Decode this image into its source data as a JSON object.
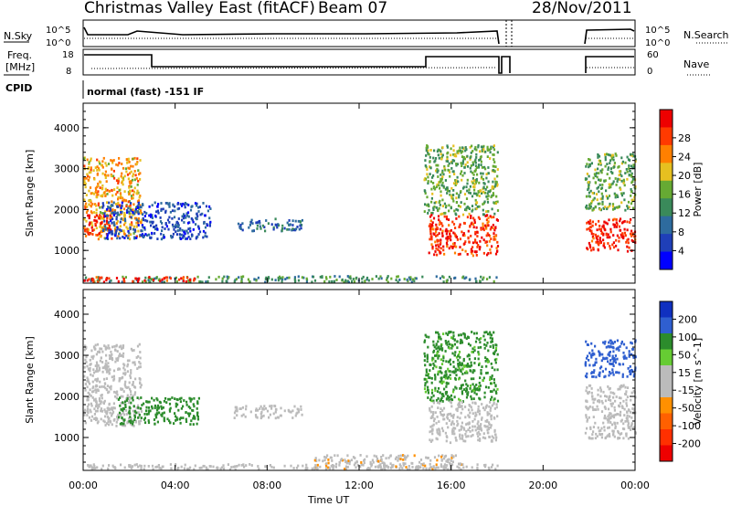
{
  "header": {
    "title": "Christmas Valley East (fitACF)",
    "beam": "Beam 07",
    "date": "28/Nov/2011"
  },
  "params": {
    "nsky_label": "N.Sky",
    "nsearch_label": "N.Search",
    "freq_label_1": "Freq.",
    "freq_label_2": "[MHz]",
    "nave_label": "Nave",
    "cpid_label": "CPID",
    "cpid_text": "normal (fast) -151 IF",
    "noise_ticks": [
      "10^5",
      "10^0"
    ],
    "noise_ticks_right": [
      "10^5",
      "10^0"
    ],
    "freq_ticks": [
      "18",
      "8"
    ],
    "nave_ticks": [
      "60",
      "0"
    ]
  },
  "xaxis": {
    "label": "Time UT",
    "ticks": [
      "00:00",
      "04:00",
      "08:00",
      "12:00",
      "16:00",
      "20:00",
      "00:00"
    ]
  },
  "colors": {
    "power_scale": [
      "#0000ff",
      "#1f3fb8",
      "#2e6b9e",
      "#3a8a5a",
      "#66aa33",
      "#e6c020",
      "#ff8000",
      "#ff3a00",
      "#ee0000"
    ],
    "velocity_scale": [
      "#1030c0",
      "#2f5fd0",
      "#2c8c2c",
      "#66cc33",
      "#bbbbbb",
      "#bbbbbb",
      "#ff9000",
      "#ff6000",
      "#ff3000",
      "#ee0000"
    ]
  },
  "chart_data": [
    {
      "type": "heatmap",
      "panel": "power",
      "ylabel": "Slant Range [km]",
      "yticks": [
        "1000",
        "2000",
        "3000",
        "4000"
      ],
      "xlim": [
        0,
        24
      ],
      "ylim": [
        200,
        4600
      ],
      "colorbar_label": "Power [dB]",
      "colorbar_ticks": [
        "4",
        "8",
        "12",
        "16",
        "20",
        "24",
        "28"
      ],
      "regions": [
        {
          "t0": 0.0,
          "t1": 2.5,
          "r0": 1300,
          "r1": 3300,
          "v": 20
        },
        {
          "t0": 0.0,
          "t1": 1.2,
          "r0": 1400,
          "r1": 1900,
          "v": 27
        },
        {
          "t0": 0.8,
          "t1": 5.5,
          "r0": 1300,
          "r1": 2200,
          "v": 6
        },
        {
          "t0": 6.5,
          "t1": 9.5,
          "r0": 1500,
          "r1": 1800,
          "v": 8
        },
        {
          "t0": 0.0,
          "t1": 18.0,
          "r0": 250,
          "r1": 400,
          "v": 12
        },
        {
          "t0": 0.0,
          "t1": 5.0,
          "r0": 250,
          "r1": 380,
          "v": 26
        },
        {
          "t0": 14.8,
          "t1": 18.0,
          "r0": 1900,
          "r1": 3600,
          "v": 14
        },
        {
          "t0": 15.0,
          "t1": 18.0,
          "r0": 900,
          "r1": 1900,
          "v": 26
        },
        {
          "t0": 21.8,
          "t1": 24.0,
          "r0": 2000,
          "r1": 3400,
          "v": 14
        },
        {
          "t0": 21.8,
          "t1": 24.0,
          "r0": 1000,
          "r1": 1800,
          "v": 27
        }
      ]
    },
    {
      "type": "heatmap",
      "panel": "velocity",
      "ylabel": "Slant Range [km]",
      "yticks": [
        "1000",
        "2000",
        "3000",
        "4000"
      ],
      "xlim": [
        0,
        24
      ],
      "ylim": [
        200,
        4600
      ],
      "colorbar_label": "Velocity [m s^-1]",
      "colorbar_ticks": [
        "200",
        "100",
        "50",
        "15",
        "-15",
        "-50",
        "-100",
        "-200"
      ],
      "regions": [
        {
          "t0": 0.0,
          "t1": 2.5,
          "r0": 1300,
          "r1": 3300,
          "v": 0
        },
        {
          "t0": 1.5,
          "t1": 5.0,
          "r0": 1350,
          "r1": 2000,
          "v": 70
        },
        {
          "t0": 6.5,
          "t1": 9.5,
          "r0": 1500,
          "r1": 1800,
          "v": 0
        },
        {
          "t0": 0.0,
          "t1": 18.0,
          "r0": 250,
          "r1": 380,
          "v": -30
        },
        {
          "t0": 10.0,
          "t1": 16.5,
          "r0": 250,
          "r1": 600,
          "v": -40
        },
        {
          "t0": 14.8,
          "t1": 18.0,
          "r0": 1900,
          "r1": 3600,
          "v": 60
        },
        {
          "t0": 15.0,
          "t1": 18.0,
          "r0": 900,
          "r1": 1900,
          "v": 0
        },
        {
          "t0": 21.8,
          "t1": 24.0,
          "r0": 2500,
          "r1": 3400,
          "v": 180
        },
        {
          "t0": 21.8,
          "t1": 24.0,
          "r0": 1000,
          "r1": 2300,
          "v": 0
        }
      ]
    }
  ]
}
